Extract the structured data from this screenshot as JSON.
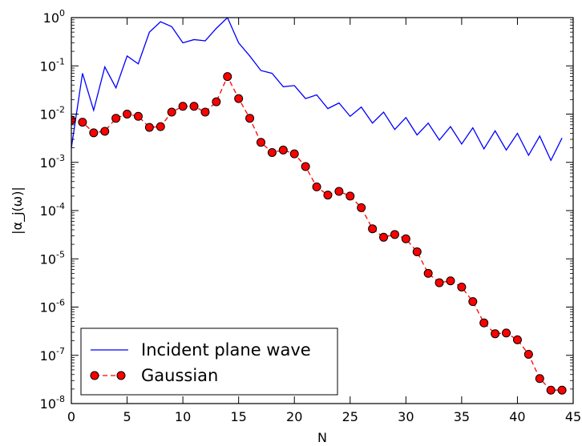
{
  "chart_data": {
    "type": "line",
    "xlabel": "N",
    "ylabel": "|α_j(ω)|",
    "xlim": [
      0,
      45
    ],
    "ylim": [
      1e-08,
      1
    ],
    "yscale": "log",
    "x_ticks": [
      0,
      5,
      10,
      15,
      20,
      25,
      30,
      35,
      40,
      45
    ],
    "y_tick_labels": [
      {
        "value": 1,
        "base": "10",
        "exp": "0"
      },
      {
        "value": 0.1,
        "base": "10",
        "exp": "-1"
      },
      {
        "value": 0.01,
        "base": "10",
        "exp": "-2"
      },
      {
        "value": 0.001,
        "base": "10",
        "exp": "-3"
      },
      {
        "value": 0.0001,
        "base": "10",
        "exp": "-4"
      },
      {
        "value": 1e-05,
        "base": "10",
        "exp": "-5"
      },
      {
        "value": 1e-06,
        "base": "10",
        "exp": "-6"
      },
      {
        "value": 1e-07,
        "base": "10",
        "exp": "-7"
      },
      {
        "value": 1e-08,
        "base": "10",
        "exp": "-8"
      }
    ],
    "grid": false,
    "legend_position": "bottom-left",
    "series": [
      {
        "name": "Incident plane wave",
        "color": "#0000ff",
        "style": "solid",
        "marker": "none",
        "x": [
          0,
          1,
          2,
          3,
          4,
          5,
          6,
          7,
          8,
          9,
          10,
          11,
          12,
          13,
          14,
          15,
          16,
          17,
          18,
          19,
          20,
          21,
          22,
          23,
          24,
          25,
          26,
          27,
          28,
          29,
          30,
          31,
          32,
          33,
          34,
          35,
          36,
          37,
          38,
          39,
          40,
          41,
          42,
          43,
          44
        ],
        "y": [
          0.002,
          0.07,
          0.012,
          0.095,
          0.035,
          0.16,
          0.11,
          0.5,
          0.82,
          0.65,
          0.3,
          0.35,
          0.33,
          0.6,
          1.0,
          0.3,
          0.16,
          0.08,
          0.07,
          0.037,
          0.039,
          0.021,
          0.025,
          0.013,
          0.017,
          0.009,
          0.014,
          0.0065,
          0.011,
          0.0048,
          0.0085,
          0.0037,
          0.0065,
          0.0029,
          0.0055,
          0.0024,
          0.0052,
          0.0019,
          0.0045,
          0.0018,
          0.004,
          0.0014,
          0.0035,
          0.0011,
          0.0032
        ]
      },
      {
        "name": "Gaussian",
        "color": "#ff0000",
        "marker_fill": "#ff0000",
        "marker_edge": "#000000",
        "style": "dashed",
        "marker": "circle",
        "x": [
          0,
          1,
          2,
          3,
          4,
          5,
          6,
          7,
          8,
          9,
          10,
          11,
          12,
          13,
          14,
          15,
          16,
          17,
          18,
          19,
          20,
          21,
          22,
          23,
          24,
          25,
          26,
          27,
          28,
          29,
          30,
          31,
          32,
          33,
          34,
          35,
          36,
          37,
          38,
          39,
          40,
          41,
          42,
          43,
          44
        ],
        "y": [
          0.0075,
          0.0068,
          0.0041,
          0.0044,
          0.0082,
          0.01,
          0.009,
          0.0053,
          0.0055,
          0.011,
          0.0145,
          0.0145,
          0.011,
          0.018,
          0.06,
          0.021,
          0.0082,
          0.0026,
          0.0016,
          0.0018,
          0.0015,
          0.00082,
          0.00031,
          0.00021,
          0.00025,
          0.0002,
          0.000115,
          4.2e-05,
          2.8e-05,
          3.2e-05,
          2.6e-05,
          1.4e-05,
          5e-06,
          3.2e-06,
          3.5e-06,
          2.6e-06,
          1.3e-06,
          4.7e-07,
          2.8e-07,
          2.9e-07,
          2.1e-07,
          1.05e-07,
          3.3e-08,
          1.9e-08,
          1.9e-08
        ]
      }
    ]
  }
}
